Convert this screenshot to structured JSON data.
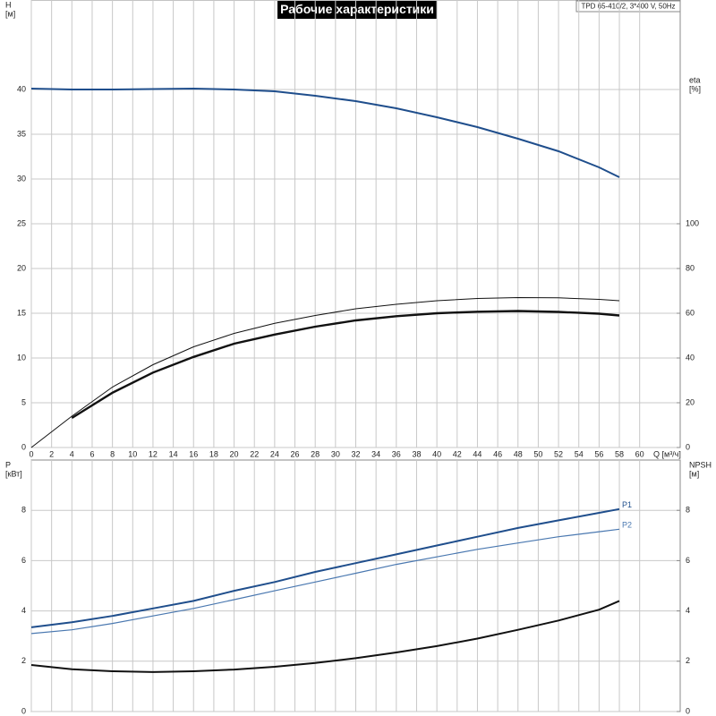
{
  "title": "Рабочие характеристики",
  "model": "TPD 65-410/2, 3*400 V, 50Hz",
  "chart_data": [
    {
      "type": "line",
      "ylabel": [
        "H",
        "[м]"
      ],
      "y2label": [
        "eta",
        "[%]"
      ],
      "xlabel": "Q [м³/ч]",
      "x": [
        0,
        4,
        8,
        12,
        16,
        20,
        24,
        28,
        32,
        36,
        40,
        44,
        48,
        52,
        56,
        58
      ],
      "xlim": [
        0,
        64
      ],
      "xticks": [
        0,
        2,
        4,
        6,
        8,
        10,
        12,
        14,
        16,
        18,
        20,
        22,
        24,
        26,
        28,
        30,
        32,
        34,
        36,
        38,
        40,
        42,
        44,
        46,
        48,
        50,
        52,
        54,
        56,
        58,
        60
      ],
      "ylim": [
        0,
        50
      ],
      "yticks": [
        0,
        5,
        10,
        15,
        20,
        25,
        30,
        35,
        40
      ],
      "y2lim": [
        0,
        200
      ],
      "y2ticks": [
        0,
        20,
        40,
        60,
        80,
        100
      ],
      "grid": true,
      "series": [
        {
          "color": "#1f4e8c",
          "width": 2,
          "values": [
            40.1,
            40,
            40,
            40.05,
            40.1,
            40,
            39.8,
            39.3,
            38.7,
            37.9,
            36.9,
            35.8,
            34.5,
            33.1,
            31.3,
            30.2
          ]
        },
        {
          "color": "#111111",
          "width": 1,
          "axis": "y2",
          "values": [
            0,
            14,
            27,
            37,
            45,
            51,
            55.5,
            59,
            62,
            64,
            65.6,
            66.6,
            67,
            66.9,
            66.2,
            65.6
          ]
        },
        {
          "color": "#111111",
          "width": 2.4,
          "axis": "y2",
          "values": [
            null,
            13.2,
            24.5,
            33.5,
            40.5,
            46.4,
            50.5,
            54,
            56.8,
            58.7,
            60,
            60.7,
            61,
            60.6,
            59.8,
            59
          ]
        }
      ]
    },
    {
      "type": "line",
      "ylabel": [
        "P",
        "[кВт]"
      ],
      "y2label": [
        "NPSH",
        "[м]"
      ],
      "x": [
        0,
        4,
        8,
        12,
        16,
        20,
        24,
        28,
        32,
        36,
        40,
        44,
        48,
        52,
        56,
        58
      ],
      "xlim": [
        0,
        64
      ],
      "xticks": [
        0,
        2,
        4,
        6,
        8,
        10,
        12,
        14,
        16,
        18,
        20,
        22,
        24,
        26,
        28,
        30,
        32,
        34,
        36,
        38,
        40,
        42,
        44,
        46,
        48,
        50,
        52,
        54,
        56,
        58,
        60
      ],
      "ylim": [
        0,
        10
      ],
      "yticks": [
        0,
        2,
        4,
        6,
        8
      ],
      "y2lim": [
        0,
        10
      ],
      "y2ticks": [
        0,
        2,
        4,
        6,
        8
      ],
      "grid": true,
      "series": [
        {
          "name": "P1",
          "color": "#1f4e8c",
          "width": 2,
          "values": [
            3.35,
            3.55,
            3.8,
            4.1,
            4.4,
            4.8,
            5.15,
            5.55,
            5.9,
            6.25,
            6.6,
            6.95,
            7.3,
            7.6,
            7.9,
            8.05
          ]
        },
        {
          "name": "P2",
          "color": "#4a78b0",
          "width": 1.2,
          "values": [
            3.1,
            3.25,
            3.5,
            3.8,
            4.1,
            4.45,
            4.8,
            5.15,
            5.5,
            5.85,
            6.15,
            6.45,
            6.7,
            6.95,
            7.15,
            7.25
          ]
        },
        {
          "color": "#111111",
          "width": 2,
          "axis": "y2",
          "values": [
            1.85,
            1.68,
            1.6,
            1.57,
            1.6,
            1.67,
            1.78,
            1.93,
            2.12,
            2.35,
            2.6,
            2.9,
            3.25,
            3.62,
            4.05,
            4.4
          ]
        }
      ]
    }
  ]
}
